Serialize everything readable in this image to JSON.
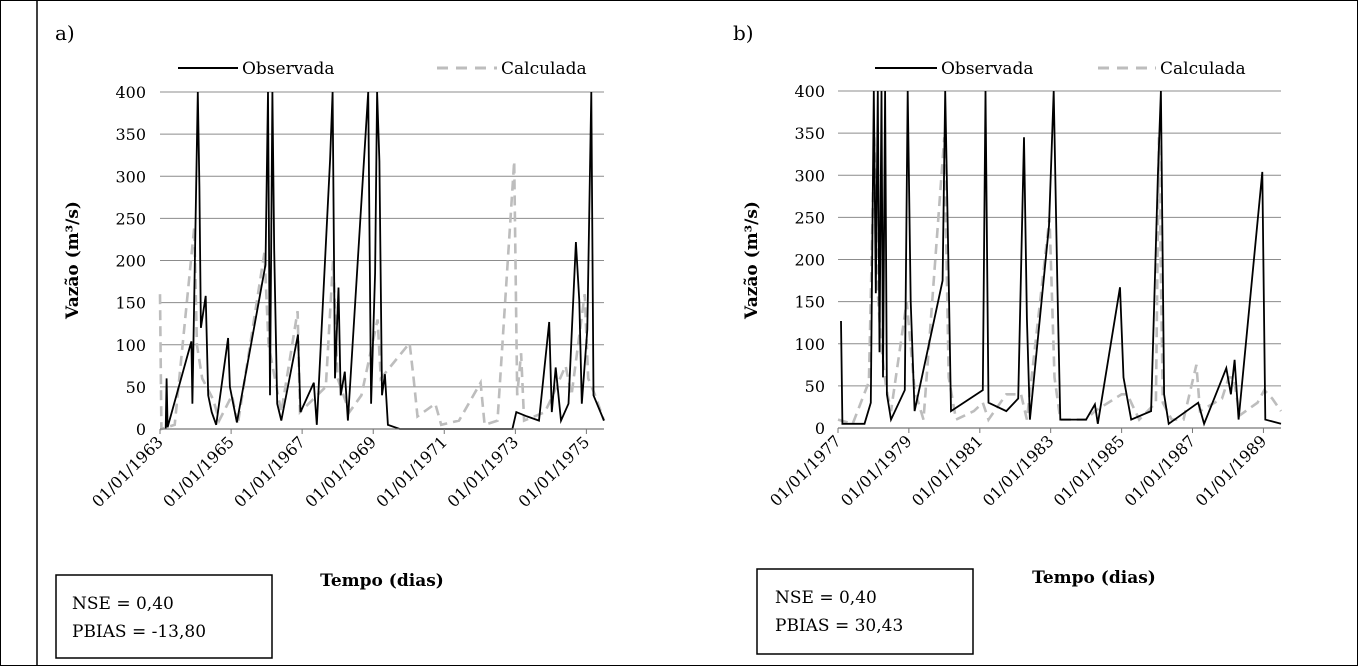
{
  "chart_data": [
    {
      "panel_label": "a)",
      "type": "line",
      "xlabel": "Tempo (dias)",
      "ylabel": "Vazão (m³/s)",
      "ylim": [
        0,
        400
      ],
      "yticks": [
        "0",
        "50",
        "100",
        "150",
        "200",
        "250",
        "300",
        "350",
        "400"
      ],
      "x_range": [
        "1963-01-01",
        "1975-07-01"
      ],
      "xticks": [
        "01/01/1963",
        "01/01/1965",
        "01/01/1967",
        "01/01/1969",
        "01/01/1971",
        "01/01/1973",
        "01/01/1975"
      ],
      "grid": "horizontal",
      "legend": "top",
      "stats": {
        "nse": "NSE = 0,40",
        "pbias": "PBIAS = -13,80"
      },
      "series": [
        {
          "name": "Observada",
          "color": "#000000",
          "style": "solid",
          "points": [
            [
              "1963-03-01",
              0
            ],
            [
              "1963-03-10",
              60
            ],
            [
              "1963-03-20",
              2
            ],
            [
              "1963-11-20",
              104
            ],
            [
              "1963-11-30",
              30
            ],
            [
              "1964-01-25",
              400
            ],
            [
              "1964-02-10",
              288
            ],
            [
              "1964-02-25",
              120
            ],
            [
              "1964-04-15",
              158
            ],
            [
              "1964-05-10",
              40
            ],
            [
              "1964-06-15",
              20
            ],
            [
              "1964-08-01",
              5
            ],
            [
              "1964-12-01",
              108
            ],
            [
              "1964-12-20",
              50
            ],
            [
              "1965-03-01",
              8
            ],
            [
              "1965-12-20",
              195
            ],
            [
              "1966-01-15",
              400
            ],
            [
              "1966-02-05",
              40
            ],
            [
              "1966-03-01",
              400
            ],
            [
              "1966-03-20",
              212
            ],
            [
              "1966-04-20",
              30
            ],
            [
              "1966-06-01",
              10
            ],
            [
              "1966-11-20",
              112
            ],
            [
              "1966-12-15",
              20
            ],
            [
              "1967-05-01",
              55
            ],
            [
              "1967-06-01",
              5
            ],
            [
              "1967-10-15",
              320
            ],
            [
              "1967-11-10",
              400
            ],
            [
              "1967-12-05",
              60
            ],
            [
              "1968-01-10",
              168
            ],
            [
              "1968-02-01",
              40
            ],
            [
              "1968-03-15",
              68
            ],
            [
              "1968-04-15",
              10
            ],
            [
              "1968-11-10",
              400
            ],
            [
              "1968-12-10",
              30
            ],
            [
              "1969-01-20",
              185
            ],
            [
              "1969-02-10",
              400
            ],
            [
              "1969-03-05",
              318
            ],
            [
              "1969-04-01",
              40
            ],
            [
              "1969-05-01",
              65
            ],
            [
              "1969-06-01",
              5
            ],
            [
              "1969-10-01",
              0
            ],
            [
              "1972-12-01",
              0
            ],
            [
              "1973-01-10",
              20
            ],
            [
              "1973-05-01",
              15
            ],
            [
              "1973-09-01",
              10
            ],
            [
              "1973-12-15",
              127
            ],
            [
              "1974-01-10",
              20
            ],
            [
              "1974-02-20",
              73
            ],
            [
              "1974-04-15",
              10
            ],
            [
              "1974-07-01",
              30
            ],
            [
              "1974-09-15",
              222
            ],
            [
              "1974-10-20",
              152
            ],
            [
              "1974-11-15",
              30
            ],
            [
              "1975-01-10",
              118
            ],
            [
              "1975-02-20",
              400
            ],
            [
              "1975-03-15",
              40
            ],
            [
              "1975-07-01",
              10
            ]
          ]
        },
        {
          "name": "Calculada",
          "color": "#bdbdbd",
          "style": "dashed",
          "points": [
            [
              "1963-01-01",
              160
            ],
            [
              "1963-01-15",
              0
            ],
            [
              "1963-06-01",
              5
            ],
            [
              "1963-12-20",
              240
            ],
            [
              "1964-01-15",
              100
            ],
            [
              "1964-03-10",
              60
            ],
            [
              "1964-07-01",
              35
            ],
            [
              "1964-09-01",
              10
            ],
            [
              "1965-01-10",
              40
            ],
            [
              "1965-03-10",
              5
            ],
            [
              "1965-12-10",
              210
            ],
            [
              "1966-01-20",
              100
            ],
            [
              "1966-06-01",
              20
            ],
            [
              "1966-11-15",
              140
            ],
            [
              "1966-12-10",
              20
            ],
            [
              "1967-09-01",
              50
            ],
            [
              "1967-11-15",
              200
            ],
            [
              "1968-01-01",
              60
            ],
            [
              "1968-05-01",
              20
            ],
            [
              "1968-09-01",
              40
            ],
            [
              "1969-02-15",
              130
            ],
            [
              "1969-03-20",
              60
            ],
            [
              "1970-01-10",
              102
            ],
            [
              "1970-02-20",
              60
            ],
            [
              "1970-04-01",
              15
            ],
            [
              "1970-10-01",
              30
            ],
            [
              "1970-12-01",
              5
            ],
            [
              "1971-06-01",
              10
            ],
            [
              "1972-01-10",
              55
            ],
            [
              "1972-02-20",
              5
            ],
            [
              "1972-07-01",
              10
            ],
            [
              "1972-12-20",
              318
            ],
            [
              "1973-01-20",
              40
            ],
            [
              "1973-03-01",
              90
            ],
            [
              "1973-04-01",
              10
            ],
            [
              "1973-11-01",
              20
            ],
            [
              "1974-01-01",
              35
            ],
            [
              "1974-06-01",
              75
            ],
            [
              "1974-08-01",
              40
            ],
            [
              "1974-12-15",
              160
            ],
            [
              "1975-01-20",
              60
            ],
            [
              "1975-04-01",
              40
            ],
            [
              "1975-07-01",
              10
            ]
          ]
        }
      ]
    },
    {
      "panel_label": "b)",
      "type": "line",
      "xlabel": "Tempo (dias)",
      "ylabel": "Vazão (m³/s)",
      "ylim": [
        0,
        400
      ],
      "yticks": [
        "0",
        "50",
        "100",
        "150",
        "200",
        "250",
        "300",
        "350",
        "400"
      ],
      "x_range": [
        "1977-01-01",
        "1989-07-01"
      ],
      "xticks": [
        "01/01/1977",
        "01/01/1979",
        "01/01/1981",
        "01/01/1983",
        "01/01/1985",
        "01/01/1987",
        "01/01/1989"
      ],
      "grid": "horizontal",
      "legend": "top",
      "stats": {
        "nse": "NSE = 0,40",
        "pbias": "PBIAS = 30,43"
      },
      "series": [
        {
          "name": "Observada",
          "color": "#000000",
          "style": "solid",
          "points": [
            [
              "1977-02-01",
              127
            ],
            [
              "1977-02-15",
              5
            ],
            [
              "1977-10-01",
              5
            ],
            [
              "1977-12-05",
              30
            ],
            [
              "1978-01-05",
              400
            ],
            [
              "1978-01-25",
              160
            ],
            [
              "1978-02-15",
              400
            ],
            [
              "1978-03-05",
              90
            ],
            [
              "1978-03-25",
              400
            ],
            [
              "1978-04-10",
              60
            ],
            [
              "1978-05-01",
              400
            ],
            [
              "1978-05-20",
              40
            ],
            [
              "1978-07-01",
              10
            ],
            [
              "1978-11-20",
              45
            ],
            [
              "1978-12-20",
              400
            ],
            [
              "1979-01-20",
              150
            ],
            [
              "1979-03-01",
              20
            ],
            [
              "1979-12-15",
              175
            ],
            [
              "1980-01-10",
              400
            ],
            [
              "1980-02-10",
              210
            ],
            [
              "1980-03-10",
              20
            ],
            [
              "1981-02-01",
              45
            ],
            [
              "1981-03-01",
              400
            ],
            [
              "1981-04-01",
              30
            ],
            [
              "1981-10-01",
              20
            ],
            [
              "1982-02-01",
              35
            ],
            [
              "1982-04-01",
              345
            ],
            [
              "1982-05-01",
              130
            ],
            [
              "1982-06-01",
              10
            ],
            [
              "1982-12-15",
              240
            ],
            [
              "1983-02-01",
              400
            ],
            [
              "1983-03-10",
              174
            ],
            [
              "1983-04-10",
              10
            ],
            [
              "1984-01-01",
              10
            ],
            [
              "1984-04-01",
              28
            ],
            [
              "1984-05-01",
              5
            ],
            [
              "1984-12-15",
              167
            ],
            [
              "1985-01-20",
              60
            ],
            [
              "1985-03-01",
              35
            ],
            [
              "1985-04-10",
              10
            ],
            [
              "1985-11-01",
              20
            ],
            [
              "1986-01-10",
              300
            ],
            [
              "1986-02-10",
              400
            ],
            [
              "1986-03-15",
              40
            ],
            [
              "1986-05-01",
              5
            ],
            [
              "1987-03-01",
              30
            ],
            [
              "1987-05-01",
              5
            ],
            [
              "1987-12-15",
              71
            ],
            [
              "1988-02-01",
              40
            ],
            [
              "1988-03-10",
              81
            ],
            [
              "1988-04-20",
              10
            ],
            [
              "1988-12-20",
              304
            ],
            [
              "1989-01-20",
              10
            ],
            [
              "1989-07-01",
              5
            ]
          ]
        },
        {
          "name": "Calculada",
          "color": "#bdbdbd",
          "style": "dashed",
          "points": [
            [
              "1977-01-01",
              10
            ],
            [
              "1977-06-01",
              5
            ],
            [
              "1977-11-15",
              55
            ],
            [
              "1978-01-10",
              345
            ],
            [
              "1978-02-10",
              170
            ],
            [
              "1978-03-20",
              100
            ],
            [
              "1978-05-10",
              50
            ],
            [
              "1978-07-01",
              20
            ],
            [
              "1978-12-10",
              150
            ],
            [
              "1979-03-01",
              45
            ],
            [
              "1979-06-01",
              10
            ],
            [
              "1980-01-01",
              345
            ],
            [
              "1980-02-15",
              60
            ],
            [
              "1980-05-01",
              10
            ],
            [
              "1980-11-01",
              20
            ],
            [
              "1981-02-01",
              30
            ],
            [
              "1981-04-01",
              10
            ],
            [
              "1981-10-01",
              40
            ],
            [
              "1982-03-01",
              40
            ],
            [
              "1982-05-01",
              10
            ],
            [
              "1982-12-20",
              250
            ],
            [
              "1983-02-10",
              60
            ],
            [
              "1983-04-10",
              10
            ],
            [
              "1984-01-01",
              10
            ],
            [
              "1984-04-01",
              20
            ],
            [
              "1985-01-01",
              40
            ],
            [
              "1985-03-01",
              40
            ],
            [
              "1985-07-01",
              10
            ],
            [
              "1985-12-20",
              30
            ],
            [
              "1986-01-20",
              345
            ],
            [
              "1986-03-01",
              30
            ],
            [
              "1986-06-01",
              10
            ],
            [
              "1986-10-01",
              10
            ],
            [
              "1987-02-10",
              75
            ],
            [
              "1987-03-20",
              20
            ],
            [
              "1987-11-01",
              35
            ],
            [
              "1988-01-10",
              60
            ],
            [
              "1988-03-01",
              60
            ],
            [
              "1988-05-01",
              15
            ],
            [
              "1988-11-01",
              30
            ],
            [
              "1989-01-10",
              45
            ],
            [
              "1989-04-01",
              35
            ],
            [
              "1989-07-01",
              20
            ]
          ]
        }
      ]
    }
  ]
}
